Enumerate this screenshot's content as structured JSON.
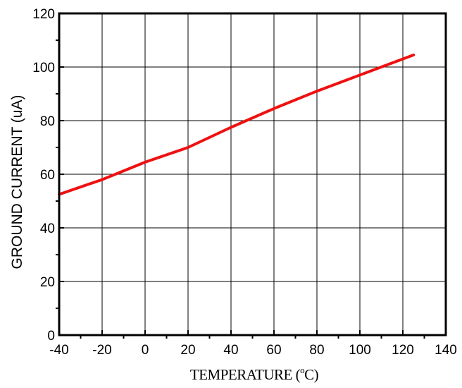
{
  "chart_data": {
    "type": "line",
    "title": "",
    "xlabel_pre": "TEMPERATURE (",
    "xlabel_sup": "o",
    "xlabel_post": "C)",
    "ylabel": "GROUND CURRENT (uA)",
    "xlim": [
      -40,
      140
    ],
    "ylim": [
      0,
      120
    ],
    "xticks": [
      -40,
      -20,
      0,
      20,
      40,
      60,
      80,
      100,
      120,
      140
    ],
    "yticks": [
      0,
      20,
      40,
      60,
      80,
      100,
      120
    ],
    "grid": true,
    "series": [
      {
        "color": "#ee1111",
        "x": [
          -40,
          -20,
          0,
          20,
          40,
          60,
          80,
          100,
          125
        ],
        "y": [
          52.5,
          58.0,
          64.5,
          70.0,
          77.5,
          84.5,
          91.0,
          97.0,
          104.5
        ]
      }
    ]
  }
}
